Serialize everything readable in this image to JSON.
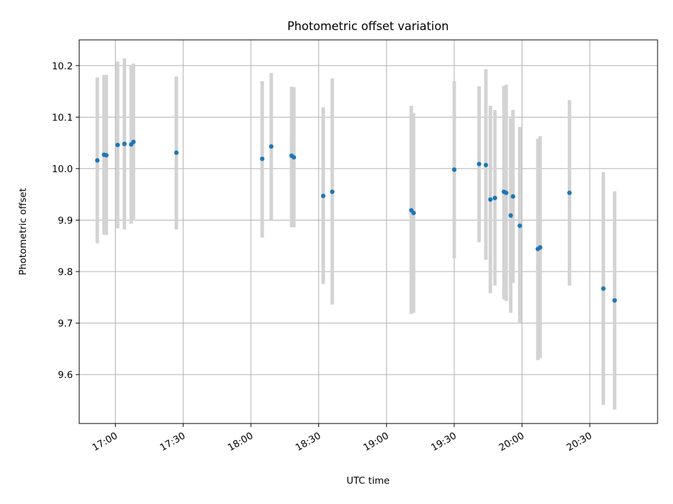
{
  "chart_data": {
    "type": "scatter",
    "title": "Photometric offset variation",
    "xlabel": "UTC time",
    "ylabel": "Photometric offset",
    "x_tick_labels": [
      "17:00",
      "17:30",
      "18:00",
      "18:30",
      "19:00",
      "19:30",
      "20:00",
      "20:30"
    ],
    "y_tick_labels": [
      "9.6",
      "9.7",
      "9.8",
      "9.9",
      "10.0",
      "10.1",
      "10.2"
    ],
    "xlim": [
      "16:44",
      "21:00"
    ],
    "ylim": [
      9.505,
      10.25
    ],
    "grid": true,
    "colors": {
      "point": "#1f77b4",
      "errorbar": "#d3d3d3"
    },
    "series": [
      {
        "points": [
          {
            "x": "16:52",
            "y": 10.016,
            "ylow": 9.855,
            "yhigh": 10.177
          },
          {
            "x": "16:55",
            "y": 10.027,
            "ylow": 9.872,
            "yhigh": 10.182
          },
          {
            "x": "16:56",
            "y": 10.026,
            "ylow": 9.871,
            "yhigh": 10.182
          },
          {
            "x": "17:01",
            "y": 10.046,
            "ylow": 9.884,
            "yhigh": 10.208
          },
          {
            "x": "17:04",
            "y": 10.048,
            "ylow": 9.882,
            "yhigh": 10.214
          },
          {
            "x": "17:07",
            "y": 10.047,
            "ylow": 9.893,
            "yhigh": 10.201
          },
          {
            "x": "17:08",
            "y": 10.052,
            "ylow": 9.899,
            "yhigh": 10.204
          },
          {
            "x": "17:27",
            "y": 10.031,
            "ylow": 9.882,
            "yhigh": 10.179
          },
          {
            "x": "18:05",
            "y": 10.019,
            "ylow": 9.866,
            "yhigh": 10.17
          },
          {
            "x": "18:09",
            "y": 10.043,
            "ylow": 9.9,
            "yhigh": 10.186
          },
          {
            "x": "18:18",
            "y": 10.025,
            "ylow": 9.886,
            "yhigh": 10.159
          },
          {
            "x": "18:19",
            "y": 10.022,
            "ylow": 9.886,
            "yhigh": 10.158
          },
          {
            "x": "18:32",
            "y": 9.947,
            "ylow": 9.776,
            "yhigh": 10.119
          },
          {
            "x": "18:36",
            "y": 9.955,
            "ylow": 9.736,
            "yhigh": 10.175
          },
          {
            "x": "19:11",
            "y": 9.919,
            "ylow": 9.718,
            "yhigh": 10.122
          },
          {
            "x": "19:12",
            "y": 9.914,
            "ylow": 9.72,
            "yhigh": 10.108
          },
          {
            "x": "19:30",
            "y": 9.998,
            "ylow": 9.826,
            "yhigh": 10.17
          },
          {
            "x": "19:41",
            "y": 10.009,
            "ylow": 9.857,
            "yhigh": 10.16
          },
          {
            "x": "19:44",
            "y": 10.007,
            "ylow": 9.823,
            "yhigh": 10.193
          },
          {
            "x": "19:46",
            "y": 9.94,
            "ylow": 9.758,
            "yhigh": 10.122
          },
          {
            "x": "19:48",
            "y": 9.943,
            "ylow": 9.773,
            "yhigh": 10.114
          },
          {
            "x": "19:52",
            "y": 9.955,
            "ylow": 9.746,
            "yhigh": 10.161
          },
          {
            "x": "19:53",
            "y": 9.953,
            "ylow": 9.743,
            "yhigh": 10.163
          },
          {
            "x": "19:55",
            "y": 9.909,
            "ylow": 9.72,
            "yhigh": 10.098
          },
          {
            "x": "19:56",
            "y": 9.946,
            "ylow": 9.778,
            "yhigh": 10.114
          },
          {
            "x": "19:59",
            "y": 9.889,
            "ylow": 9.7,
            "yhigh": 10.081
          },
          {
            "x": "20:07",
            "y": 9.844,
            "ylow": 9.628,
            "yhigh": 10.058
          },
          {
            "x": "20:08",
            "y": 9.847,
            "ylow": 9.632,
            "yhigh": 10.063
          },
          {
            "x": "20:21",
            "y": 9.953,
            "ylow": 9.773,
            "yhigh": 10.133
          },
          {
            "x": "20:36",
            "y": 9.767,
            "ylow": 9.541,
            "yhigh": 9.993
          },
          {
            "x": "20:41",
            "y": 9.744,
            "ylow": 9.532,
            "yhigh": 9.956
          }
        ]
      }
    ]
  }
}
